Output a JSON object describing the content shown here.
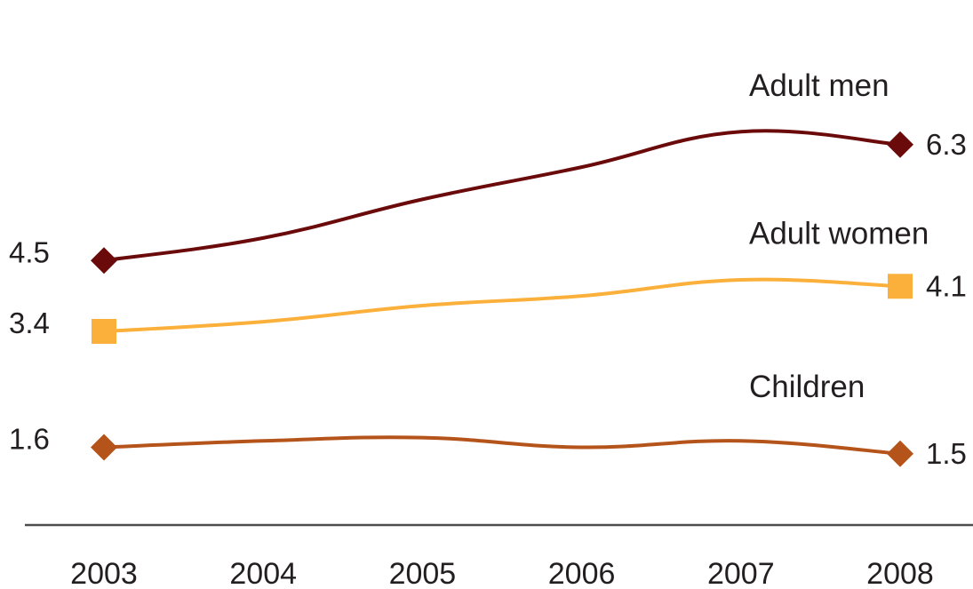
{
  "chart_data": {
    "type": "line",
    "title": "",
    "xlabel": "",
    "ylabel": "",
    "categories": [
      "2003",
      "2004",
      "2005",
      "2006",
      "2007",
      "2008"
    ],
    "series": [
      {
        "name": "Adult men",
        "values": [
          4.5,
          4.85,
          5.45,
          5.95,
          6.5,
          6.3
        ],
        "color": "#6b0a0a",
        "marker": "diamond",
        "start_label": "4.5",
        "end_label": "6.3"
      },
      {
        "name": "Adult women",
        "values": [
          3.4,
          3.55,
          3.8,
          3.95,
          4.2,
          4.1
        ],
        "color": "#fbb03b",
        "marker": "square",
        "start_label": "3.4",
        "end_label": "4.1"
      },
      {
        "name": "Children",
        "values": [
          1.6,
          1.7,
          1.75,
          1.6,
          1.7,
          1.5
        ],
        "color": "#b5541a",
        "marker": "diamond",
        "start_label": "1.6",
        "end_label": "1.5"
      }
    ],
    "ylim": [
      0,
      7
    ],
    "grid": false,
    "axis_line": true,
    "legend": "none"
  }
}
